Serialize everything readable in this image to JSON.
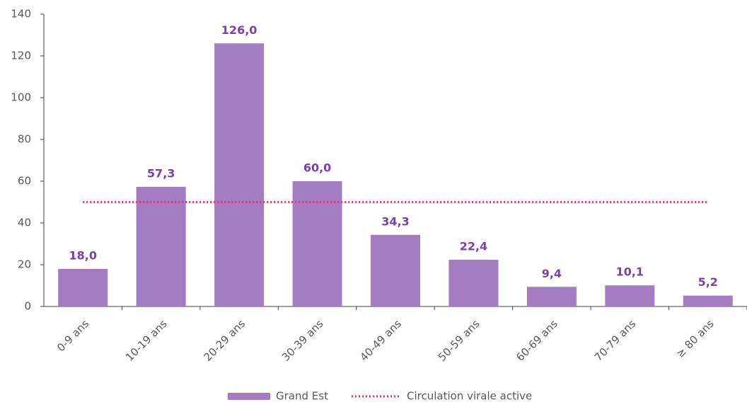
{
  "chart_data": {
    "type": "bar",
    "categories": [
      "0-9 ans",
      "10-19 ans",
      "20-29 ans",
      "30-39 ans",
      "40-49 ans",
      "50-59 ans",
      "60-69 ans",
      "70-79 ans",
      "≥ 80 ans"
    ],
    "series": [
      {
        "name": "Grand Est",
        "type": "bar",
        "color": "#a37cc2",
        "values": [
          18.0,
          57.3,
          126.0,
          60.0,
          34.3,
          22.4,
          9.4,
          10.1,
          5.2
        ],
        "value_labels": [
          "18,0",
          "57,3",
          "126,0",
          "60,0",
          "34,3",
          "22,4",
          "9,4",
          "10,1",
          "5,2"
        ]
      },
      {
        "name": "Circulation virale active",
        "type": "line",
        "color": "#e0307a",
        "values": [
          50,
          50,
          50,
          50,
          50,
          50,
          50,
          50,
          50
        ]
      }
    ],
    "ylim": [
      0,
      140
    ],
    "yticks": [
      0,
      20,
      40,
      60,
      80,
      100,
      120,
      140
    ],
    "grid": false
  }
}
